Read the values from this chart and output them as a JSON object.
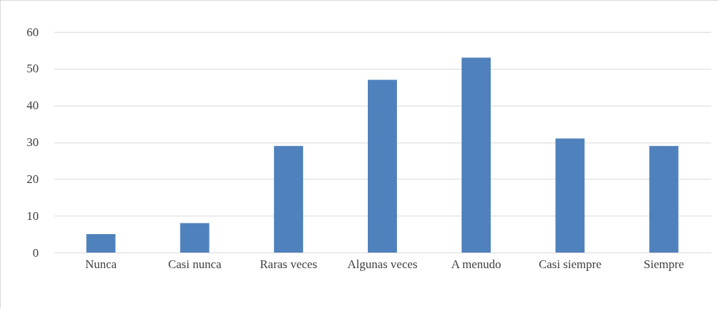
{
  "chart_data": {
    "type": "bar",
    "categories": [
      "Nunca",
      "Casi nunca",
      "Raras veces",
      "Algunas veces",
      "A menudo",
      "Casi siempre",
      "Siempre"
    ],
    "values": [
      5,
      8,
      29,
      47,
      53,
      31,
      29
    ],
    "color": "#4f81bd",
    "ylim": [
      0,
      60
    ],
    "yticks": [
      0,
      10,
      20,
      30,
      40,
      50,
      60
    ],
    "grid": "y"
  }
}
